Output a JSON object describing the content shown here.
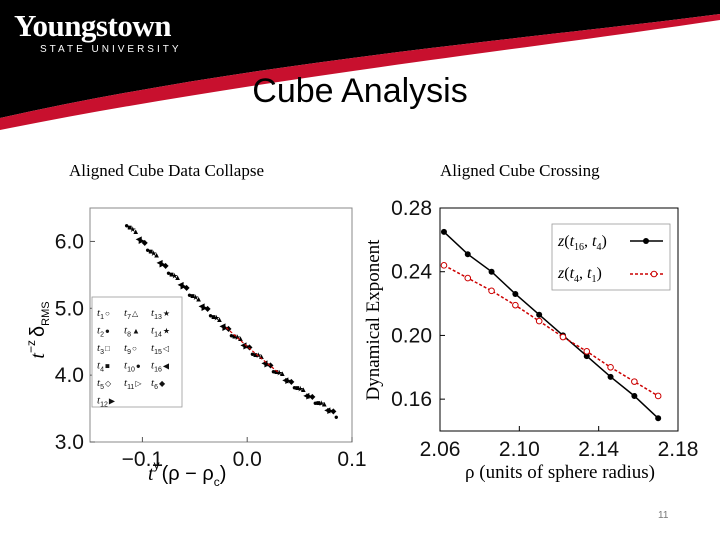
{
  "header": {
    "logo_main": "Youngstown",
    "logo_sub": "STATE UNIVERSITY",
    "colors": {
      "band": "#000000",
      "accent": "#c8102e",
      "logo_text": "#ffffff"
    }
  },
  "slide": {
    "title": "Cube Analysis",
    "page_number": "11"
  },
  "chart_data": [
    {
      "type": "scatter",
      "title": "Aligned Cube Data Collapse",
      "xlim": [
        -0.15,
        0.1
      ],
      "ylim": [
        3.0,
        6.5
      ],
      "xticks": [
        "−0.1",
        "0.0",
        "0.1"
      ],
      "yticks": [
        "3.0",
        "4.0",
        "5.0",
        "6.0"
      ],
      "xlabel": {
        "prefix": "t",
        "exponent": "y",
        "body": "(ρ − ρ",
        "subscript": "c",
        "suffix": ")"
      },
      "ylabel": {
        "prefix": "t",
        "exponent": "−z",
        "body": "δ",
        "subscript": "RMS"
      },
      "curve": {
        "start": [
          -0.115,
          6.28
        ],
        "end": [
          0.085,
          3.42
        ],
        "mid_y_at_zero": 4.43,
        "color": "#000000",
        "fit_color": "#cc0000"
      },
      "legend": {
        "placement": "bottom-left",
        "entries": [
          {
            "label": "t",
            "sub": "1",
            "marker": "○"
          },
          {
            "label": "t",
            "sub": "7",
            "marker": "△"
          },
          {
            "label": "t",
            "sub": "13",
            "marker": "★"
          },
          {
            "label": "t",
            "sub": "2",
            "marker": "●"
          },
          {
            "label": "t",
            "sub": "8",
            "marker": "▲"
          },
          {
            "label": "t",
            "sub": "14",
            "marker": "★"
          },
          {
            "label": "t",
            "sub": "3",
            "marker": "□"
          },
          {
            "label": "t",
            "sub": "9",
            "marker": "○"
          },
          {
            "label": "t",
            "sub": "15",
            "marker": "◁"
          },
          {
            "label": "t",
            "sub": "4",
            "marker": "■"
          },
          {
            "label": "t",
            "sub": "10",
            "marker": "●"
          },
          {
            "label": "t",
            "sub": "16",
            "marker": "◀"
          },
          {
            "label": "t",
            "sub": "5",
            "marker": "◇"
          },
          {
            "label": "t",
            "sub": "11",
            "marker": "▷"
          },
          {
            "label": "t",
            "sub": "6",
            "marker": "◆"
          },
          {
            "label": "t",
            "sub": "12",
            "marker": "▶"
          }
        ]
      }
    },
    {
      "type": "line",
      "title": "Aligned Cube Crossing",
      "xlabel": "ρ (units of sphere radius)",
      "ylabel": "Dynamical Exponent",
      "xlim": [
        2.06,
        2.18
      ],
      "ylim": [
        0.14,
        0.28
      ],
      "xticks": [
        "2.06",
        "2.10",
        "2.14",
        "2.18"
      ],
      "yticks": [
        "0.16",
        "0.20",
        "0.24",
        "0.28"
      ],
      "grid": false,
      "legend_placement": "top-right",
      "series": [
        {
          "name": "z(t16, t4)",
          "name_parts": {
            "fn": "z",
            "a": "t",
            "a_sub": "16",
            "b": "t",
            "b_sub": "4"
          },
          "style": "solid",
          "marker": "filled-circle",
          "color": "#000000",
          "x": [
            2.062,
            2.074,
            2.086,
            2.098,
            2.11,
            2.122,
            2.134,
            2.146,
            2.158,
            2.17
          ],
          "y": [
            0.265,
            0.251,
            0.24,
            0.226,
            0.213,
            0.2,
            0.187,
            0.174,
            0.162,
            0.148
          ]
        },
        {
          "name": "z(t4, t1)",
          "name_parts": {
            "fn": "z",
            "a": "t",
            "a_sub": "4",
            "b": "t",
            "b_sub": "1"
          },
          "style": "dashed",
          "marker": "open-circle",
          "color": "#cc0000",
          "x": [
            2.062,
            2.074,
            2.086,
            2.098,
            2.11,
            2.122,
            2.134,
            2.146,
            2.158,
            2.17
          ],
          "y": [
            0.244,
            0.236,
            0.228,
            0.219,
            0.209,
            0.199,
            0.19,
            0.18,
            0.171,
            0.162
          ]
        }
      ]
    }
  ]
}
